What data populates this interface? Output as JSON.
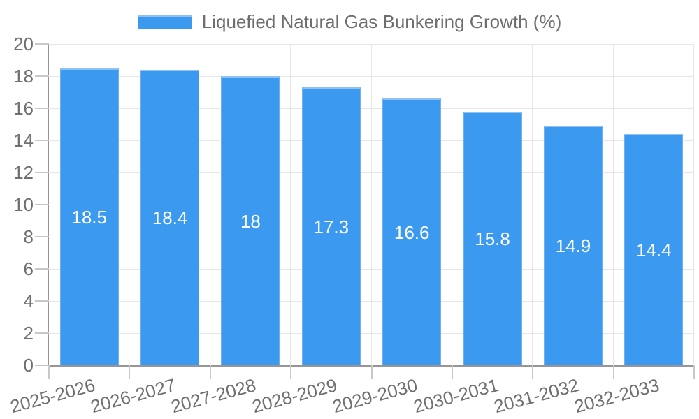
{
  "legend": {
    "label": "Liquefied Natural Gas Bunkering Growth (%)"
  },
  "colors": {
    "bar_fill": "#3b9aef",
    "bar_border": "#8ec1f4",
    "axis_line": "#969696",
    "gridline": "#e6e6e6",
    "tick_mark": "#c8c8c8",
    "tick_label": "#707070",
    "legend_text": "#6e6e6e",
    "value_label": "#ffffff",
    "background": "#ffffff"
  },
  "chart_data": {
    "type": "bar",
    "title": "Liquefied Natural Gas Bunkering Growth (%)",
    "categories": [
      "2025-2026",
      "2026-2027",
      "2027-2028",
      "2028-2029",
      "2029-2030",
      "2030-2031",
      "2031-2032",
      "2032-2033"
    ],
    "values": [
      18.5,
      18.4,
      18,
      17.3,
      16.6,
      15.8,
      14.9,
      14.4
    ],
    "value_labels": [
      "18.5",
      "18.4",
      "18",
      "17.3",
      "16.6",
      "15.8",
      "14.9",
      "14.4"
    ],
    "series_name": "Liquefied Natural Gas Bunkering Growth (%)",
    "xlabel": "",
    "ylabel": "",
    "ylim": [
      0,
      20
    ],
    "yticks": [
      0,
      2,
      4,
      6,
      8,
      10,
      12,
      14,
      16,
      18,
      20
    ],
    "grid": true,
    "legend_position": "top",
    "value_label_position": "bar-center",
    "x_tick_rotation_deg": -15
  }
}
